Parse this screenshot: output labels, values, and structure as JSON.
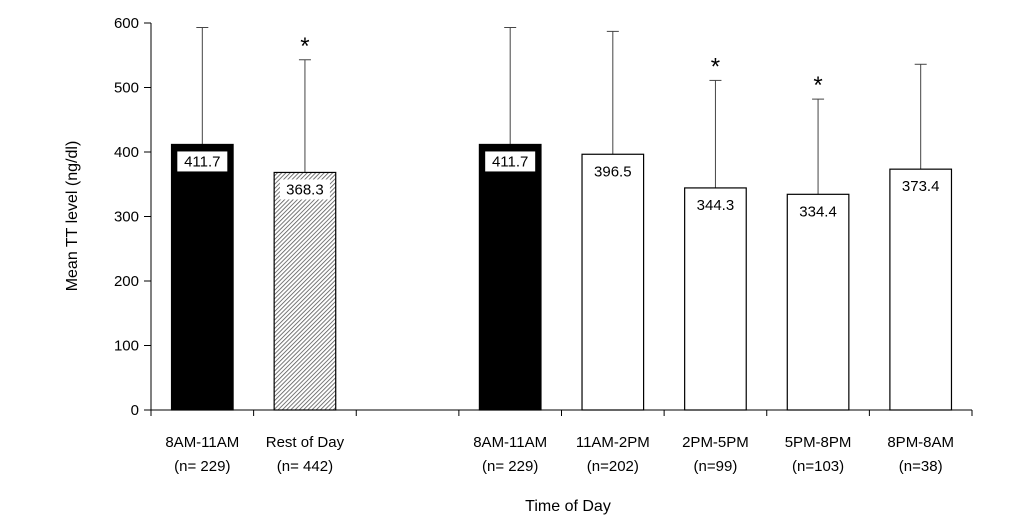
{
  "chart_data": {
    "type": "bar",
    "xlabel": "Time of Day",
    "ylabel": "Mean TT level (ng/dl)",
    "ylim": [
      0,
      600
    ],
    "yticks": [
      0,
      100,
      200,
      300,
      400,
      500,
      600
    ],
    "grid": false,
    "categories": [
      {
        "label": "8AM-11AM",
        "n": "(n= 229)",
        "value": 411.7,
        "error_upper": 593,
        "fill": "black",
        "value_label": "411.7",
        "significant": false
      },
      {
        "label": "Rest of Day",
        "n": "(n= 442)",
        "value": 368.3,
        "error_upper": 543,
        "fill": "hatched",
        "value_label": "368.3",
        "significant": true
      },
      {
        "label": "",
        "n": "",
        "value": null,
        "error_upper": null,
        "fill": "none",
        "value_label": "",
        "significant": false
      },
      {
        "label": "8AM-11AM",
        "n": "(n= 229)",
        "value": 411.7,
        "error_upper": 593,
        "fill": "black",
        "value_label": "411.7",
        "significant": false
      },
      {
        "label": "11AM-2PM",
        "n": "(n=202)",
        "value": 396.5,
        "error_upper": 587,
        "fill": "white",
        "value_label": "396.5",
        "significant": false
      },
      {
        "label": "2PM-5PM",
        "n": "(n=99)",
        "value": 344.3,
        "error_upper": 511,
        "fill": "white",
        "value_label": "344.3",
        "significant": true
      },
      {
        "label": "5PM-8PM",
        "n": "(n=103)",
        "value": 334.4,
        "error_upper": 482,
        "fill": "white",
        "value_label": "334.4",
        "significant": true
      },
      {
        "label": "8PM-8AM",
        "n": "(n=38)",
        "value": 373.4,
        "error_upper": 536,
        "fill": "white",
        "value_label": "373.4",
        "significant": false
      }
    ],
    "significance_marker": "*"
  }
}
